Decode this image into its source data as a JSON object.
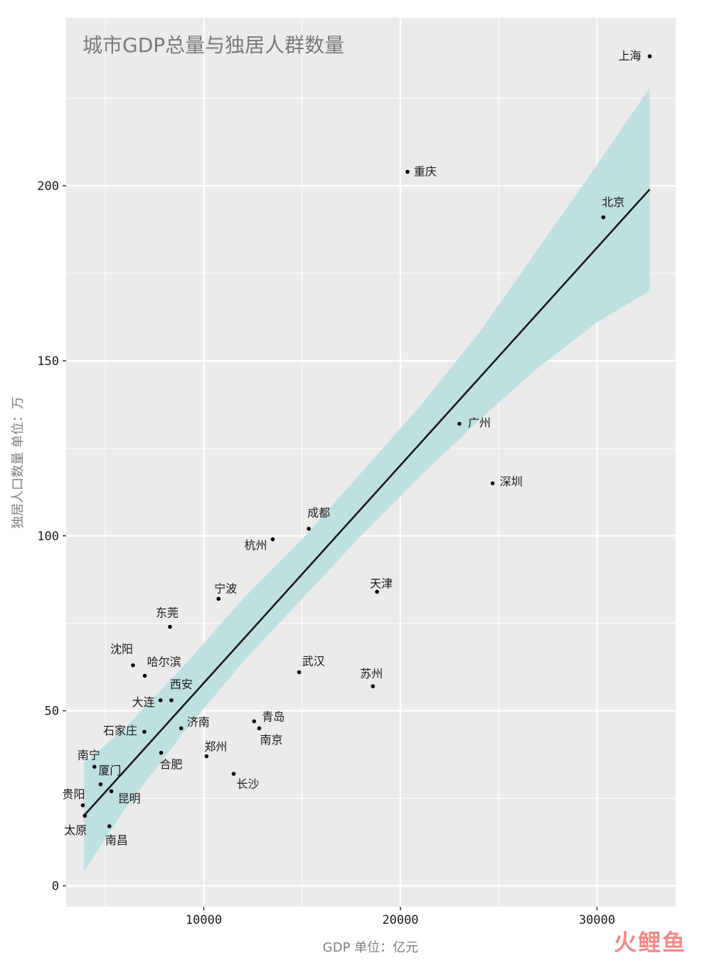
{
  "chart_data": {
    "type": "scatter",
    "title": "城市GDP总量与独居人群数量",
    "xlabel": "GDP 单位：亿元",
    "ylabel": "独居人口数量 单位：万",
    "xlim": [
      3000,
      34000
    ],
    "ylim": [
      -6,
      248
    ],
    "x_ticks": [
      10000,
      20000,
      30000
    ],
    "x_tick_labels": [
      "10000",
      "20000",
      "30000"
    ],
    "y_ticks": [
      0,
      50,
      100,
      150,
      200
    ],
    "y_tick_labels": [
      "0",
      "50",
      "100",
      "150",
      "200"
    ],
    "grid": true,
    "legend": "none",
    "points": [
      {
        "name": "上海",
        "x": 32680,
        "y": 237
      },
      {
        "name": "重庆",
        "x": 20360,
        "y": 204
      },
      {
        "name": "北京",
        "x": 30320,
        "y": 191
      },
      {
        "name": "广州",
        "x": 23000,
        "y": 132
      },
      {
        "name": "深圳",
        "x": 24690,
        "y": 115
      },
      {
        "name": "成都",
        "x": 15340,
        "y": 102
      },
      {
        "name": "杭州",
        "x": 13510,
        "y": 99
      },
      {
        "name": "天津",
        "x": 18810,
        "y": 84
      },
      {
        "name": "宁波",
        "x": 10750,
        "y": 82
      },
      {
        "name": "东莞",
        "x": 8280,
        "y": 74
      },
      {
        "name": "沈阳",
        "x": 6400,
        "y": 63
      },
      {
        "name": "武汉",
        "x": 14850,
        "y": 61
      },
      {
        "name": "哈尔滨",
        "x": 7000,
        "y": 60
      },
      {
        "name": "苏州",
        "x": 18600,
        "y": 57
      },
      {
        "name": "西安",
        "x": 8350,
        "y": 53
      },
      {
        "name": "大连",
        "x": 7800,
        "y": 53
      },
      {
        "name": "青岛",
        "x": 12560,
        "y": 47
      },
      {
        "name": "南京",
        "x": 12820,
        "y": 45
      },
      {
        "name": "济南",
        "x": 8850,
        "y": 45
      },
      {
        "name": "石家庄",
        "x": 6980,
        "y": 44
      },
      {
        "name": "合肥",
        "x": 7830,
        "y": 38
      },
      {
        "name": "郑州",
        "x": 10140,
        "y": 37
      },
      {
        "name": "南宁",
        "x": 4440,
        "y": 34
      },
      {
        "name": "长沙",
        "x": 11520,
        "y": 32
      },
      {
        "name": "厦门",
        "x": 4750,
        "y": 29
      },
      {
        "name": "昆明",
        "x": 5300,
        "y": 27
      },
      {
        "name": "贵阳",
        "x": 3850,
        "y": 23
      },
      {
        "name": "太原",
        "x": 3950,
        "y": 20
      },
      {
        "name": "南昌",
        "x": 5200,
        "y": 17
      }
    ],
    "fit_line": {
      "x": [
        3900,
        32680
      ],
      "y": [
        20,
        199
      ]
    },
    "confidence_band": {
      "x": [
        3900,
        6000,
        9000,
        12000,
        15000,
        18000,
        21000,
        24000,
        27000,
        30000,
        32680
      ],
      "lower": [
        4,
        22,
        44,
        64,
        82,
        100,
        117,
        133,
        148,
        161,
        170
      ],
      "upper": [
        35,
        45,
        63,
        82,
        99,
        118,
        137,
        158,
        182,
        206,
        228
      ]
    },
    "colors": {
      "panel": "#ebebeb",
      "grid": "#ffffff",
      "band": "#bfe0e0",
      "line": "#1a1a1a",
      "points": "#000000"
    }
  },
  "watermark": "火鲤鱼"
}
